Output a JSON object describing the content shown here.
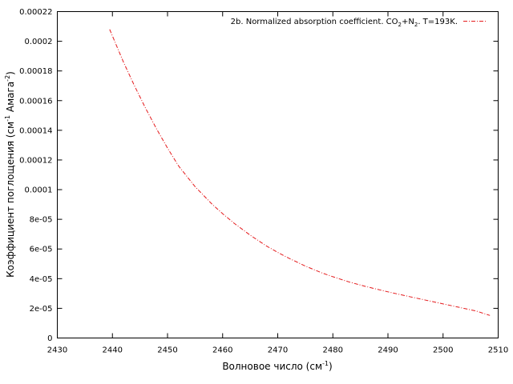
{
  "chart_data": {
    "type": "line",
    "title": "",
    "xlabel": "Волновое число (см",
    "xlabel_sup": "-1",
    "xlabel_end": ")",
    "ylabel": "Коэффициент поглощения (см",
    "ylabel_sup1": "-1",
    "ylabel_mid": " Амага",
    "ylabel_sup2": "-2",
    "ylabel_end": ")",
    "xlim": [
      2430,
      2510
    ],
    "ylim": [
      0,
      0.00022
    ],
    "x_ticks": [
      "2430",
      "2440",
      "2450",
      "2460",
      "2470",
      "2480",
      "2490",
      "2500",
      "2510"
    ],
    "y_ticks": [
      "0",
      "2e-05",
      "4e-05",
      "6e-05",
      "8e-05",
      "0.0001",
      "0.00012",
      "0.00014",
      "0.00016",
      "0.00018",
      "0.0002",
      "0.00022"
    ],
    "grid": false,
    "legend_position": "top-right",
    "series": [
      {
        "name": "2b. Normalized absorption coefficient. CO2+N2. T=193K.",
        "name_parts": [
          "2b. Normalized absorption coefficient. CO",
          "2",
          "+N",
          "2",
          ". T=193K."
        ],
        "color": "#e41a1c",
        "line_style": "dash-dot",
        "x": [
          2439.5,
          2442,
          2444,
          2446,
          2448,
          2450,
          2452,
          2455,
          2458,
          2460,
          2462,
          2465,
          2468,
          2470,
          2472,
          2475,
          2478,
          2480,
          2483,
          2486,
          2490,
          2494,
          2498,
          2502,
          2506,
          2508.5
        ],
        "y": [
          0.000208,
          0.000186,
          0.00017,
          0.000155,
          0.000141,
          0.000128,
          0.000116,
          0.000102,
          9.05e-05,
          8.38e-05,
          7.76e-05,
          6.93e-05,
          6.19e-05,
          5.77e-05,
          5.38e-05,
          4.85e-05,
          4.39e-05,
          4.13e-05,
          3.77e-05,
          3.47e-05,
          3.11e-05,
          2.78e-05,
          2.46e-05,
          2.14e-05,
          1.82e-05,
          1.52e-05
        ]
      }
    ]
  }
}
